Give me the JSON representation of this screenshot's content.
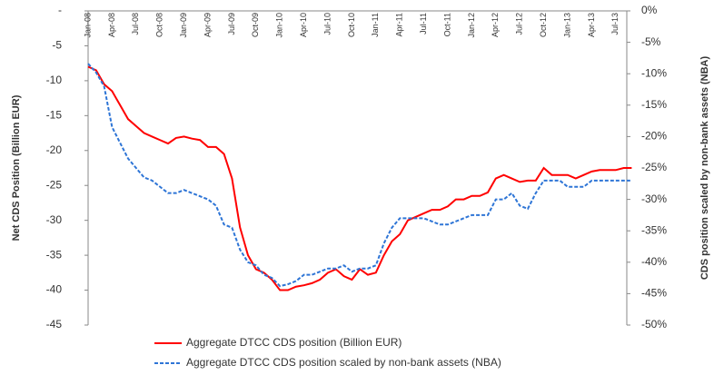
{
  "chart_data": {
    "type": "line",
    "y_label": "Net CDS Position (Billion EUR)",
    "y2_label": "CDS position scaled by non-bank assets (NBA)",
    "categories": [
      "Jan-08",
      null,
      null,
      "Apr-08",
      null,
      null,
      "Jul-08",
      null,
      null,
      "Oct-08",
      null,
      null,
      "Jan-09",
      null,
      null,
      "Apr-09",
      null,
      null,
      "Jul-09",
      null,
      null,
      "Oct-09",
      null,
      null,
      "Jan-10",
      null,
      null,
      "Apr-10",
      null,
      null,
      "Jul-10",
      null,
      null,
      "Oct-10",
      null,
      null,
      "Jan-11",
      null,
      null,
      "Apr-11",
      null,
      null,
      "Jul-11",
      null,
      null,
      "Oct-11",
      null,
      null,
      "Jan-12",
      null,
      null,
      "Apr-12",
      null,
      null,
      "Jul-12",
      null,
      null,
      "Oct-12",
      null,
      null,
      "Jan-13",
      null,
      null,
      "Apr-13",
      null,
      null,
      "Jul-13",
      null,
      null
    ],
    "series": [
      {
        "name": "Aggregate DTCC CDS position (Billion EUR)",
        "color": "#ff0000",
        "line_style": "solid",
        "axis": "y",
        "values": [
          -8,
          -8.5,
          -10.5,
          -11.5,
          -13.5,
          -15.5,
          -16.5,
          -17.5,
          -18,
          -18.5,
          -19,
          -18.2,
          -18,
          -18.3,
          -18.5,
          -19.5,
          -19.5,
          -20.5,
          -24,
          -31,
          -35,
          -37,
          -37.5,
          -38.5,
          -40,
          -40,
          -39.5,
          -39.3,
          -39,
          -38.5,
          -37.5,
          -37,
          -38,
          -38.5,
          -37,
          -37.8,
          -37.5,
          -35,
          -33,
          -32,
          -30,
          -29.5,
          -29,
          -28.5,
          -28.5,
          -28,
          -27,
          -27,
          -26.5,
          -26.5,
          -26,
          -24,
          -23.5,
          -24,
          -24.5,
          -24.3,
          -24.3,
          -22.5,
          -23.5,
          -23.5,
          -23.5,
          -24,
          -23.5,
          -23,
          -22.8,
          -22.8,
          -22.8,
          -22.5,
          -22.5
        ]
      },
      {
        "name": "Aggregate DTCC CDS position scaled by non-bank assets (NBA)",
        "color": "#2e75d6",
        "line_style": "dashed",
        "axis": "y2",
        "values": [
          -8.4,
          -9.8,
          -12,
          -18.5,
          -21,
          -23.5,
          -25,
          -26.5,
          -27,
          -28,
          -29,
          -29,
          -28.5,
          -29,
          -29.5,
          -30,
          -31,
          -34,
          -34.5,
          -38,
          -40,
          -40.5,
          -42,
          -42.5,
          -43.8,
          -43.5,
          -43,
          -42,
          -42,
          -41.5,
          -41,
          -41,
          -40.5,
          -41.5,
          -41,
          -41,
          -40.5,
          -37,
          -34.5,
          -33,
          -33,
          -33,
          -33,
          -33.5,
          -34,
          -34,
          -33.5,
          -33,
          -32.5,
          -32.5,
          -32.5,
          -30,
          -30,
          -29,
          -31,
          -31.5,
          -29,
          -27,
          -27,
          -27,
          -28,
          -28,
          -28,
          -27,
          -27,
          -27,
          -27,
          -27,
          -27
        ]
      }
    ],
    "ylim": [
      0,
      -45
    ],
    "yticks": [
      {
        "value": 0,
        "label": "-"
      },
      -5,
      -10,
      -15,
      -20,
      -25,
      -30,
      -35,
      -40,
      -45
    ],
    "y2lim": [
      0,
      -50
    ],
    "y2ticks": [
      {
        "value": 0,
        "label": "0%"
      },
      {
        "value": -5,
        "label": "-5%"
      },
      {
        "value": -10,
        "label": "-10%"
      },
      {
        "value": -15,
        "label": "-15%"
      },
      {
        "value": -20,
        "label": "-20%"
      },
      {
        "value": -25,
        "label": "-25%"
      },
      {
        "value": -30,
        "label": "-30%"
      },
      {
        "value": -35,
        "label": "-35%"
      },
      {
        "value": -40,
        "label": "-40%"
      },
      {
        "value": -45,
        "label": "-45%"
      },
      {
        "value": -50,
        "label": "-50%"
      }
    ],
    "grid": false
  }
}
